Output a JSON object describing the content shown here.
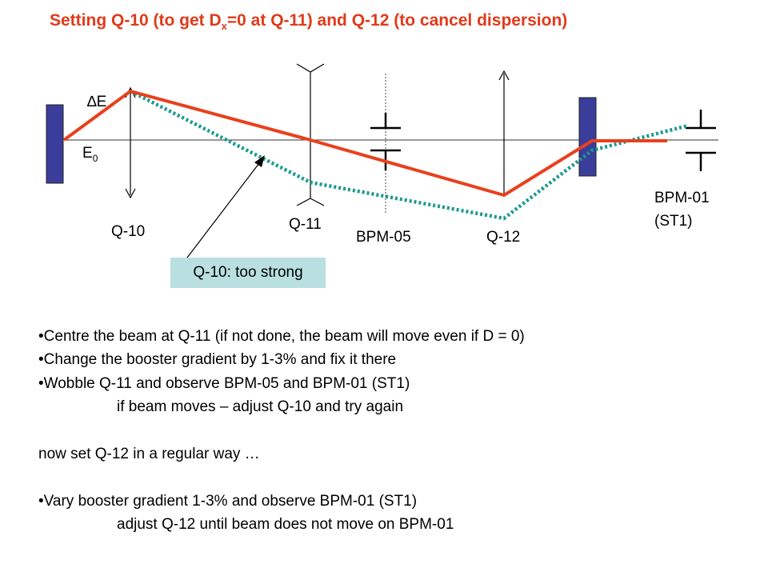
{
  "title": {
    "prefix": "Setting Q-10 (to get D",
    "sub": "x",
    "suffix": "=0 at Q-11) and Q-12 (to cancel dispersion)"
  },
  "diagram": {
    "delta_e": "∆E",
    "e0_main": "E",
    "e0_sub": "0",
    "q10": "Q-10",
    "q11": "Q-11",
    "bpm05": "BPM-05",
    "q12": "Q-12",
    "bpm01_line1": "BPM-01",
    "bpm01_line2": "(ST1)",
    "callout": "Q-10: too strong"
  },
  "notes": {
    "b1": "•Centre the beam at Q-11 (if not done, the beam will move even if D = 0)",
    "b2": "•Change the booster gradient by 1-3% and fix it there",
    "b3": "•Wobble Q-11 and observe BPM-05 and BPM-01 (ST1)",
    "b3_sub": "if beam moves – adjust Q-10 and try again",
    "plain": "now set Q-12 in a regular way …",
    "b4": "•Vary booster gradient 1-3% and observe BPM-01 (ST1)",
    "b4_sub": "adjust Q-12 until beam does not move on BPM-01"
  },
  "colors": {
    "title": "#e03a1a",
    "beam_red": "#e8401c",
    "beam_teal": "#1a9a8e",
    "magnet": "#3a3d9a",
    "callout_bg": "#b9dfe1"
  }
}
